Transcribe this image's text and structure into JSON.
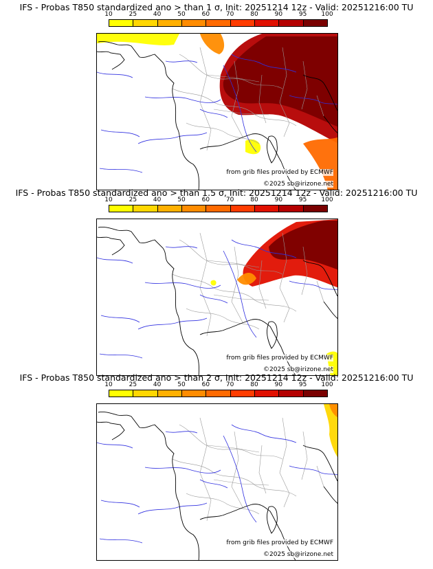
{
  "panels": [
    {
      "title": "IFS - Probas T850  standardized ano > than 1 σ, Init: 20251214 12z - Valid: 20251216:00 TU",
      "sigma_threshold": 1,
      "credit_source": "from grib files provided by ECMWF",
      "credit_copyright": "©2025 sb@irizone.net"
    },
    {
      "title": "IFS - Probas T850  standardized ano > than 1.5 σ, Init: 20251214 12z - Valid: 20251216:00 TU",
      "sigma_threshold": 1.5,
      "credit_source": "from grib files provided by ECMWF",
      "credit_copyright": "©2025 sb@irizone.net"
    },
    {
      "title": "IFS - Probas T850  standardized ano > than 2 σ, Init: 20251214 12z - Valid: 20251216:00 TU",
      "sigma_threshold": 2,
      "credit_source": "from grib files provided by ECMWF",
      "credit_copyright": "©2025 sb@irizone.net"
    }
  ],
  "colorbar": {
    "ticks": [
      "10",
      "25",
      "40",
      "50",
      "60",
      "70",
      "80",
      "90",
      "95",
      "100"
    ],
    "colors": [
      "#ffff00",
      "#ffd700",
      "#ffb000",
      "#ff8c00",
      "#ff6a00",
      "#ff3c00",
      "#e01000",
      "#b40000",
      "#7a0000"
    ]
  },
  "map_colors": {
    "land_border": "#000000",
    "admin_border": "#9a9a9a",
    "rivers": "#3030e0"
  }
}
